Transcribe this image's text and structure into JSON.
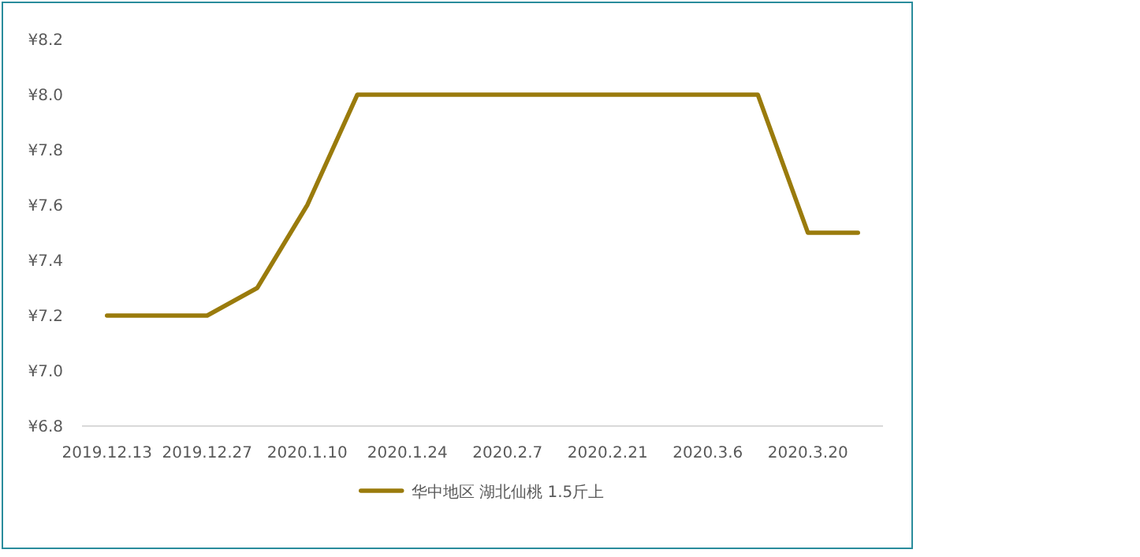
{
  "chart_data": {
    "type": "line",
    "categories": [
      "2019.12.13",
      null,
      "2019.12.27",
      null,
      "2020.1.10",
      null,
      "2020.1.24",
      null,
      "2020.2.7",
      null,
      "2020.2.21",
      null,
      "2020.3.6",
      null,
      "2020.3.20",
      null
    ],
    "series": [
      {
        "name": "华中地区 湖北仙桃 1.5斤上",
        "color": "#9a7b0c",
        "values": [
          7.2,
          7.2,
          7.2,
          7.3,
          7.6,
          8.0,
          8.0,
          8.0,
          8.0,
          8.0,
          8.0,
          8.0,
          8.0,
          8.0,
          7.5,
          7.5
        ]
      }
    ],
    "ylim": [
      6.8,
      8.2
    ],
    "yticks": [
      {
        "value": 6.8,
        "label": "¥6.8"
      },
      {
        "value": 7.0,
        "label": "¥7.0"
      },
      {
        "value": 7.2,
        "label": "¥7.2"
      },
      {
        "value": 7.4,
        "label": "¥7.4"
      },
      {
        "value": 7.6,
        "label": "¥7.6"
      },
      {
        "value": 7.8,
        "label": "¥7.8"
      },
      {
        "value": 8.0,
        "label": "¥8.0"
      },
      {
        "value": 8.2,
        "label": "¥8.2"
      }
    ],
    "grid": false,
    "legend": "bottom",
    "marker": "none",
    "line_style": "solid"
  }
}
